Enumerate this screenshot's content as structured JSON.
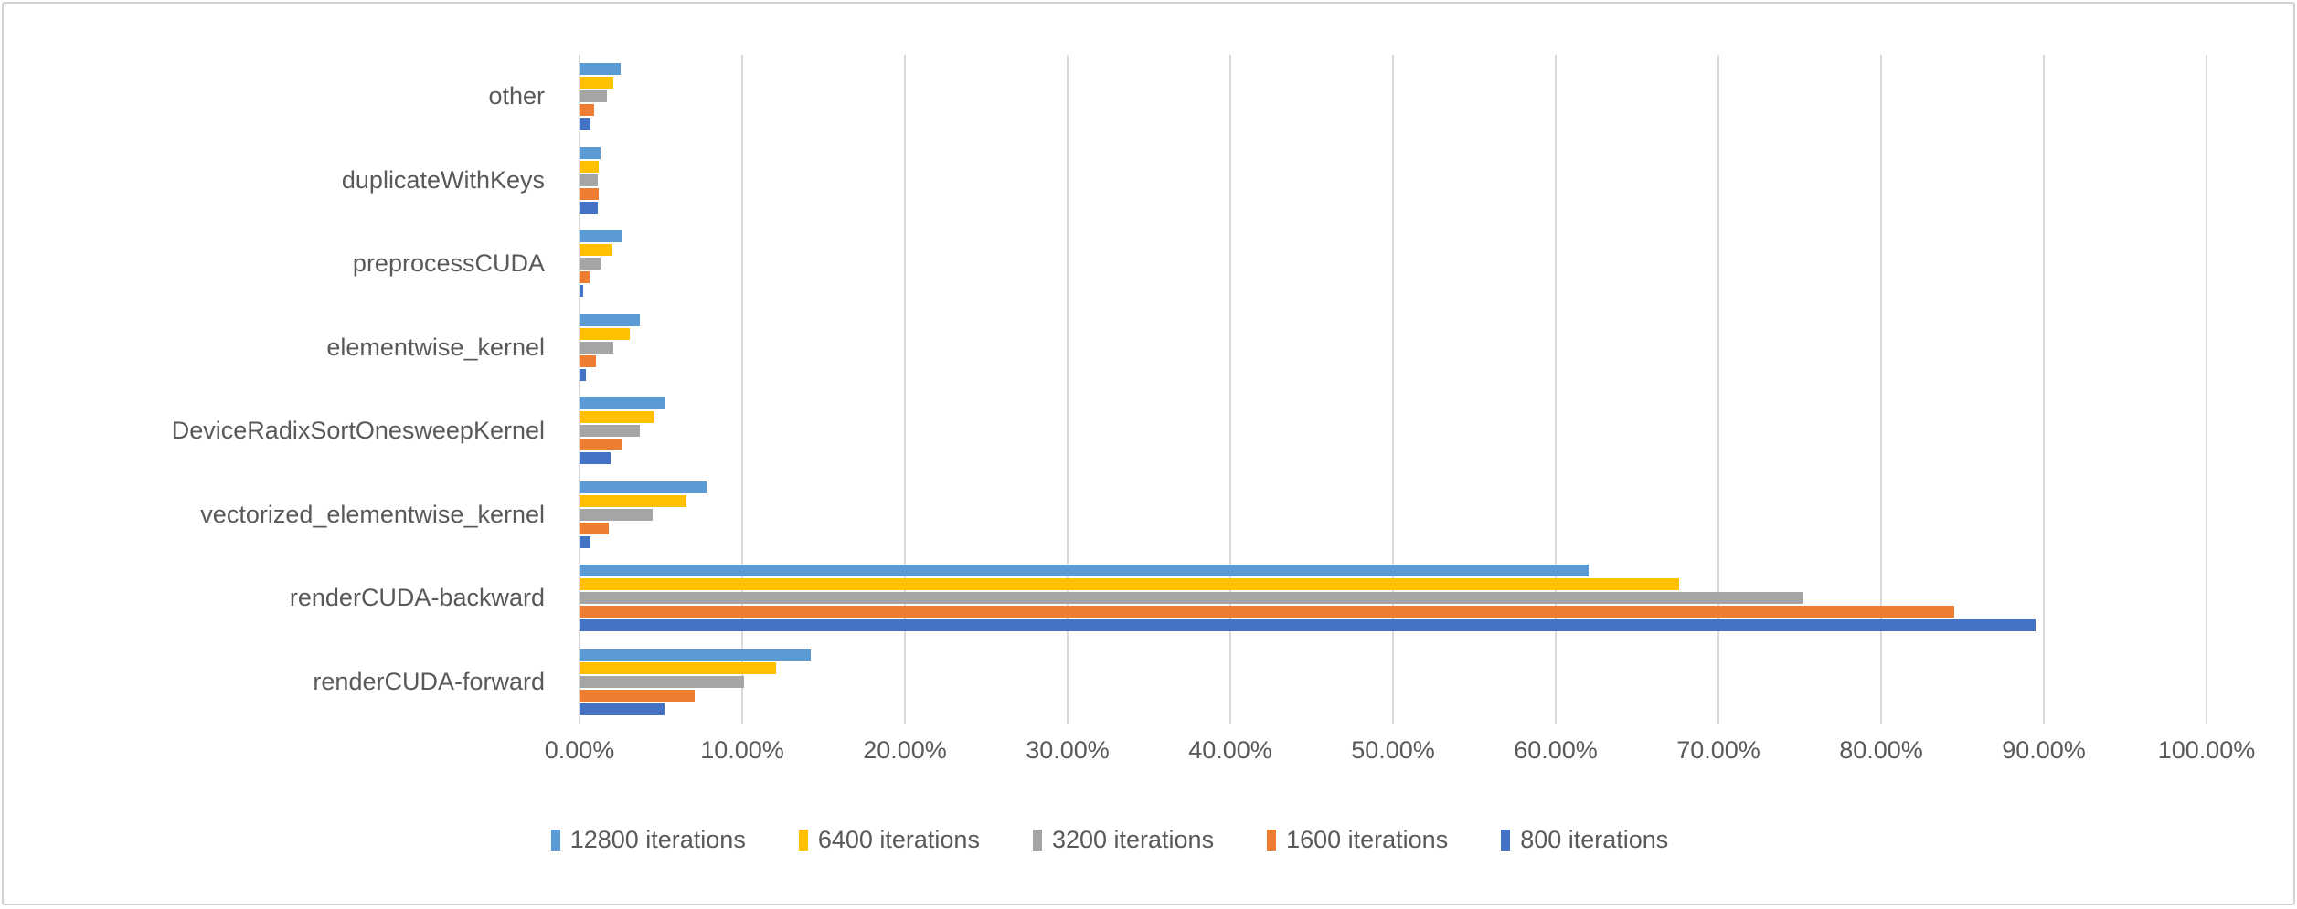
{
  "chart_data": {
    "type": "bar",
    "orientation": "horizontal",
    "title": "",
    "xlabel": "",
    "ylabel": "",
    "grid": true,
    "legend_position": "bottom",
    "categories": [
      "other",
      "duplicateWithKeys",
      "preprocessCUDA",
      "elementwise_kernel",
      "DeviceRadixSortOnesweepKernel",
      "vectorized_elementwise_kernel",
      "renderCUDA-backward",
      "renderCUDA-forward"
    ],
    "series": [
      {
        "name": "12800 iterations",
        "color": "#5B9BD5",
        "values": [
          2.5,
          1.3,
          2.6,
          3.7,
          5.3,
          7.8,
          62.0,
          14.2
        ]
      },
      {
        "name": "6400 iterations",
        "color": "#FFC000",
        "values": [
          2.1,
          1.2,
          2.0,
          3.1,
          4.6,
          6.6,
          67.6,
          12.1
        ]
      },
      {
        "name": "3200 iterations",
        "color": "#A5A5A5",
        "values": [
          1.7,
          1.1,
          1.3,
          2.1,
          3.7,
          4.5,
          75.2,
          10.1
        ]
      },
      {
        "name": "1600 iterations",
        "color": "#ED7D31",
        "values": [
          0.9,
          1.2,
          0.6,
          1.0,
          2.6,
          1.8,
          84.5,
          7.1
        ]
      },
      {
        "name": "800 iterations",
        "color": "#4472C4",
        "values": [
          0.7,
          1.1,
          0.25,
          0.4,
          1.9,
          0.65,
          89.5,
          5.2
        ]
      }
    ],
    "x_axis": {
      "min": 0,
      "max": 100,
      "tick_step": 10,
      "tick_labels": [
        "0.00%",
        "10.00%",
        "20.00%",
        "30.00%",
        "40.00%",
        "50.00%",
        "60.00%",
        "70.00%",
        "80.00%",
        "90.00%",
        "100.00%"
      ]
    },
    "colors": {
      "gridline": "#D9D9D9",
      "text": "#595959",
      "background": "#FFFFFF"
    }
  }
}
